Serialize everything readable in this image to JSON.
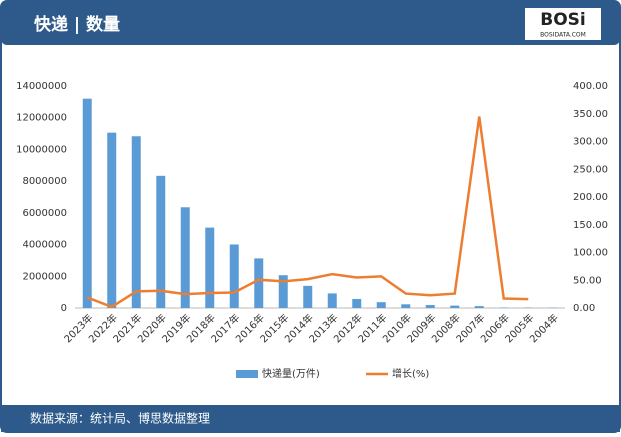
{
  "header": {
    "title": "快递 | 数量",
    "logo": "BOSi",
    "logo_sub": "BOSIDATA.COM"
  },
  "chart_data": {
    "type": "bar",
    "categories": [
      "2023年",
      "2022年",
      "2021年",
      "2020年",
      "2019年",
      "2018年",
      "2017年",
      "2016年",
      "2015年",
      "2014年",
      "2013年",
      "2012年",
      "2011年",
      "2010年",
      "2009年",
      "2008年",
      "2007年",
      "2006年",
      "2005年",
      "2004年"
    ],
    "series": [
      {
        "name": "快递量(万件)",
        "type": "bar",
        "color": "#5b9bd5",
        "values": [
          13200000,
          11058000,
          10830000,
          8336000,
          6352000,
          5071000,
          4006000,
          3128000,
          2067000,
          1396000,
          919000,
          569000,
          367000,
          234000,
          186000,
          151000,
          120000,
          27000,
          23000,
          20000
        ]
      },
      {
        "name": "增长(%)",
        "type": "line",
        "axis": "y2",
        "color": "#ed7d31",
        "values": [
          19,
          2,
          30,
          31,
          25,
          27,
          28,
          51,
          48,
          52,
          61,
          55,
          57,
          26,
          23,
          26,
          345,
          17,
          16,
          null
        ]
      }
    ],
    "ylim": [
      0,
      14000000
    ],
    "yticks": [
      0,
      2000000,
      4000000,
      6000000,
      8000000,
      10000000,
      12000000,
      14000000
    ],
    "y2lim": [
      0,
      400
    ],
    "y2ticks": [
      {
        "value": 0,
        "label": "0.00"
      },
      {
        "value": 50,
        "label": "50.00"
      },
      {
        "value": 100,
        "label": "100.00"
      },
      {
        "value": 150,
        "label": "150.00"
      },
      {
        "value": 200,
        "label": "200.00"
      },
      {
        "value": 250,
        "label": "250.00"
      },
      {
        "value": 300,
        "label": "300.00"
      },
      {
        "value": 350,
        "label": "350.00"
      },
      {
        "value": 400,
        "label": "400.00"
      }
    ],
    "legend": "bottom"
  },
  "footer": {
    "source": "数据来源：统计局、博思数据整理"
  }
}
